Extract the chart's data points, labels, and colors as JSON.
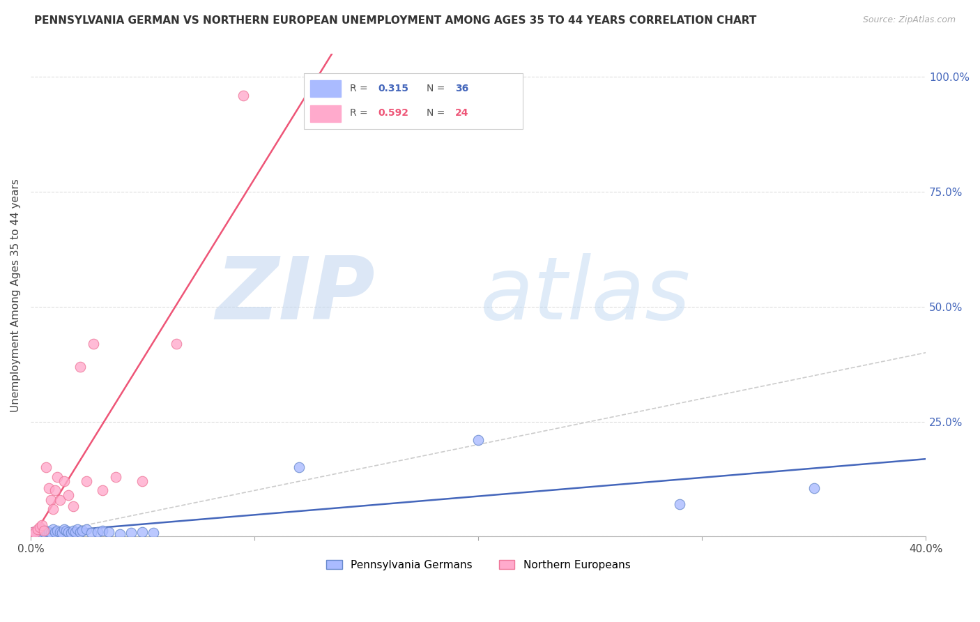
{
  "title": "PENNSYLVANIA GERMAN VS NORTHERN EUROPEAN UNEMPLOYMENT AMONG AGES 35 TO 44 YEARS CORRELATION CHART",
  "source": "Source: ZipAtlas.com",
  "ylabel": "Unemployment Among Ages 35 to 44 years",
  "xlim": [
    0.0,
    0.4
  ],
  "ylim": [
    0.0,
    1.05
  ],
  "xticks": [
    0.0,
    0.1,
    0.2,
    0.3,
    0.4
  ],
  "xticklabels": [
    "0.0%",
    "",
    "",
    "",
    "40.0%"
  ],
  "yticks_right": [
    0.0,
    0.25,
    0.5,
    0.75,
    1.0
  ],
  "yticklabels_right": [
    "",
    "25.0%",
    "50.0%",
    "75.0%",
    "100.0%"
  ],
  "watermark_zip": "ZIP",
  "watermark_atlas": "atlas",
  "R1": "0.315",
  "N1": "36",
  "R2": "0.592",
  "N2": "24",
  "color_blue_fill": "#AABBFF",
  "color_blue_edge": "#6688CC",
  "color_pink_fill": "#FFAACC",
  "color_pink_edge": "#EE7799",
  "color_trend_blue": "#4466BB",
  "color_trend_pink": "#EE5577",
  "color_ref": "#CCCCCC",
  "color_grid": "#DDDDDD",
  "pa_x": [
    0.001,
    0.002,
    0.003,
    0.004,
    0.005,
    0.006,
    0.007,
    0.008,
    0.009,
    0.01,
    0.011,
    0.012,
    0.013,
    0.014,
    0.015,
    0.016,
    0.017,
    0.018,
    0.019,
    0.02,
    0.021,
    0.022,
    0.023,
    0.025,
    0.027,
    0.03,
    0.032,
    0.035,
    0.04,
    0.045,
    0.05,
    0.055,
    0.12,
    0.2,
    0.29,
    0.35
  ],
  "pa_y": [
    0.01,
    0.008,
    0.012,
    0.005,
    0.015,
    0.01,
    0.012,
    0.01,
    0.008,
    0.015,
    0.01,
    0.012,
    0.01,
    0.008,
    0.015,
    0.012,
    0.01,
    0.008,
    0.012,
    0.01,
    0.015,
    0.01,
    0.012,
    0.015,
    0.008,
    0.01,
    0.012,
    0.01,
    0.005,
    0.008,
    0.01,
    0.008,
    0.15,
    0.21,
    0.07,
    0.105
  ],
  "ne_x": [
    0.001,
    0.002,
    0.003,
    0.004,
    0.005,
    0.006,
    0.007,
    0.008,
    0.009,
    0.01,
    0.011,
    0.012,
    0.013,
    0.015,
    0.017,
    0.019,
    0.022,
    0.025,
    0.028,
    0.032,
    0.038,
    0.05,
    0.065,
    0.095
  ],
  "ne_y": [
    0.01,
    0.008,
    0.015,
    0.02,
    0.025,
    0.012,
    0.15,
    0.105,
    0.08,
    0.06,
    0.1,
    0.13,
    0.08,
    0.12,
    0.09,
    0.065,
    0.37,
    0.12,
    0.42,
    0.1,
    0.13,
    0.12,
    0.42,
    0.96
  ]
}
